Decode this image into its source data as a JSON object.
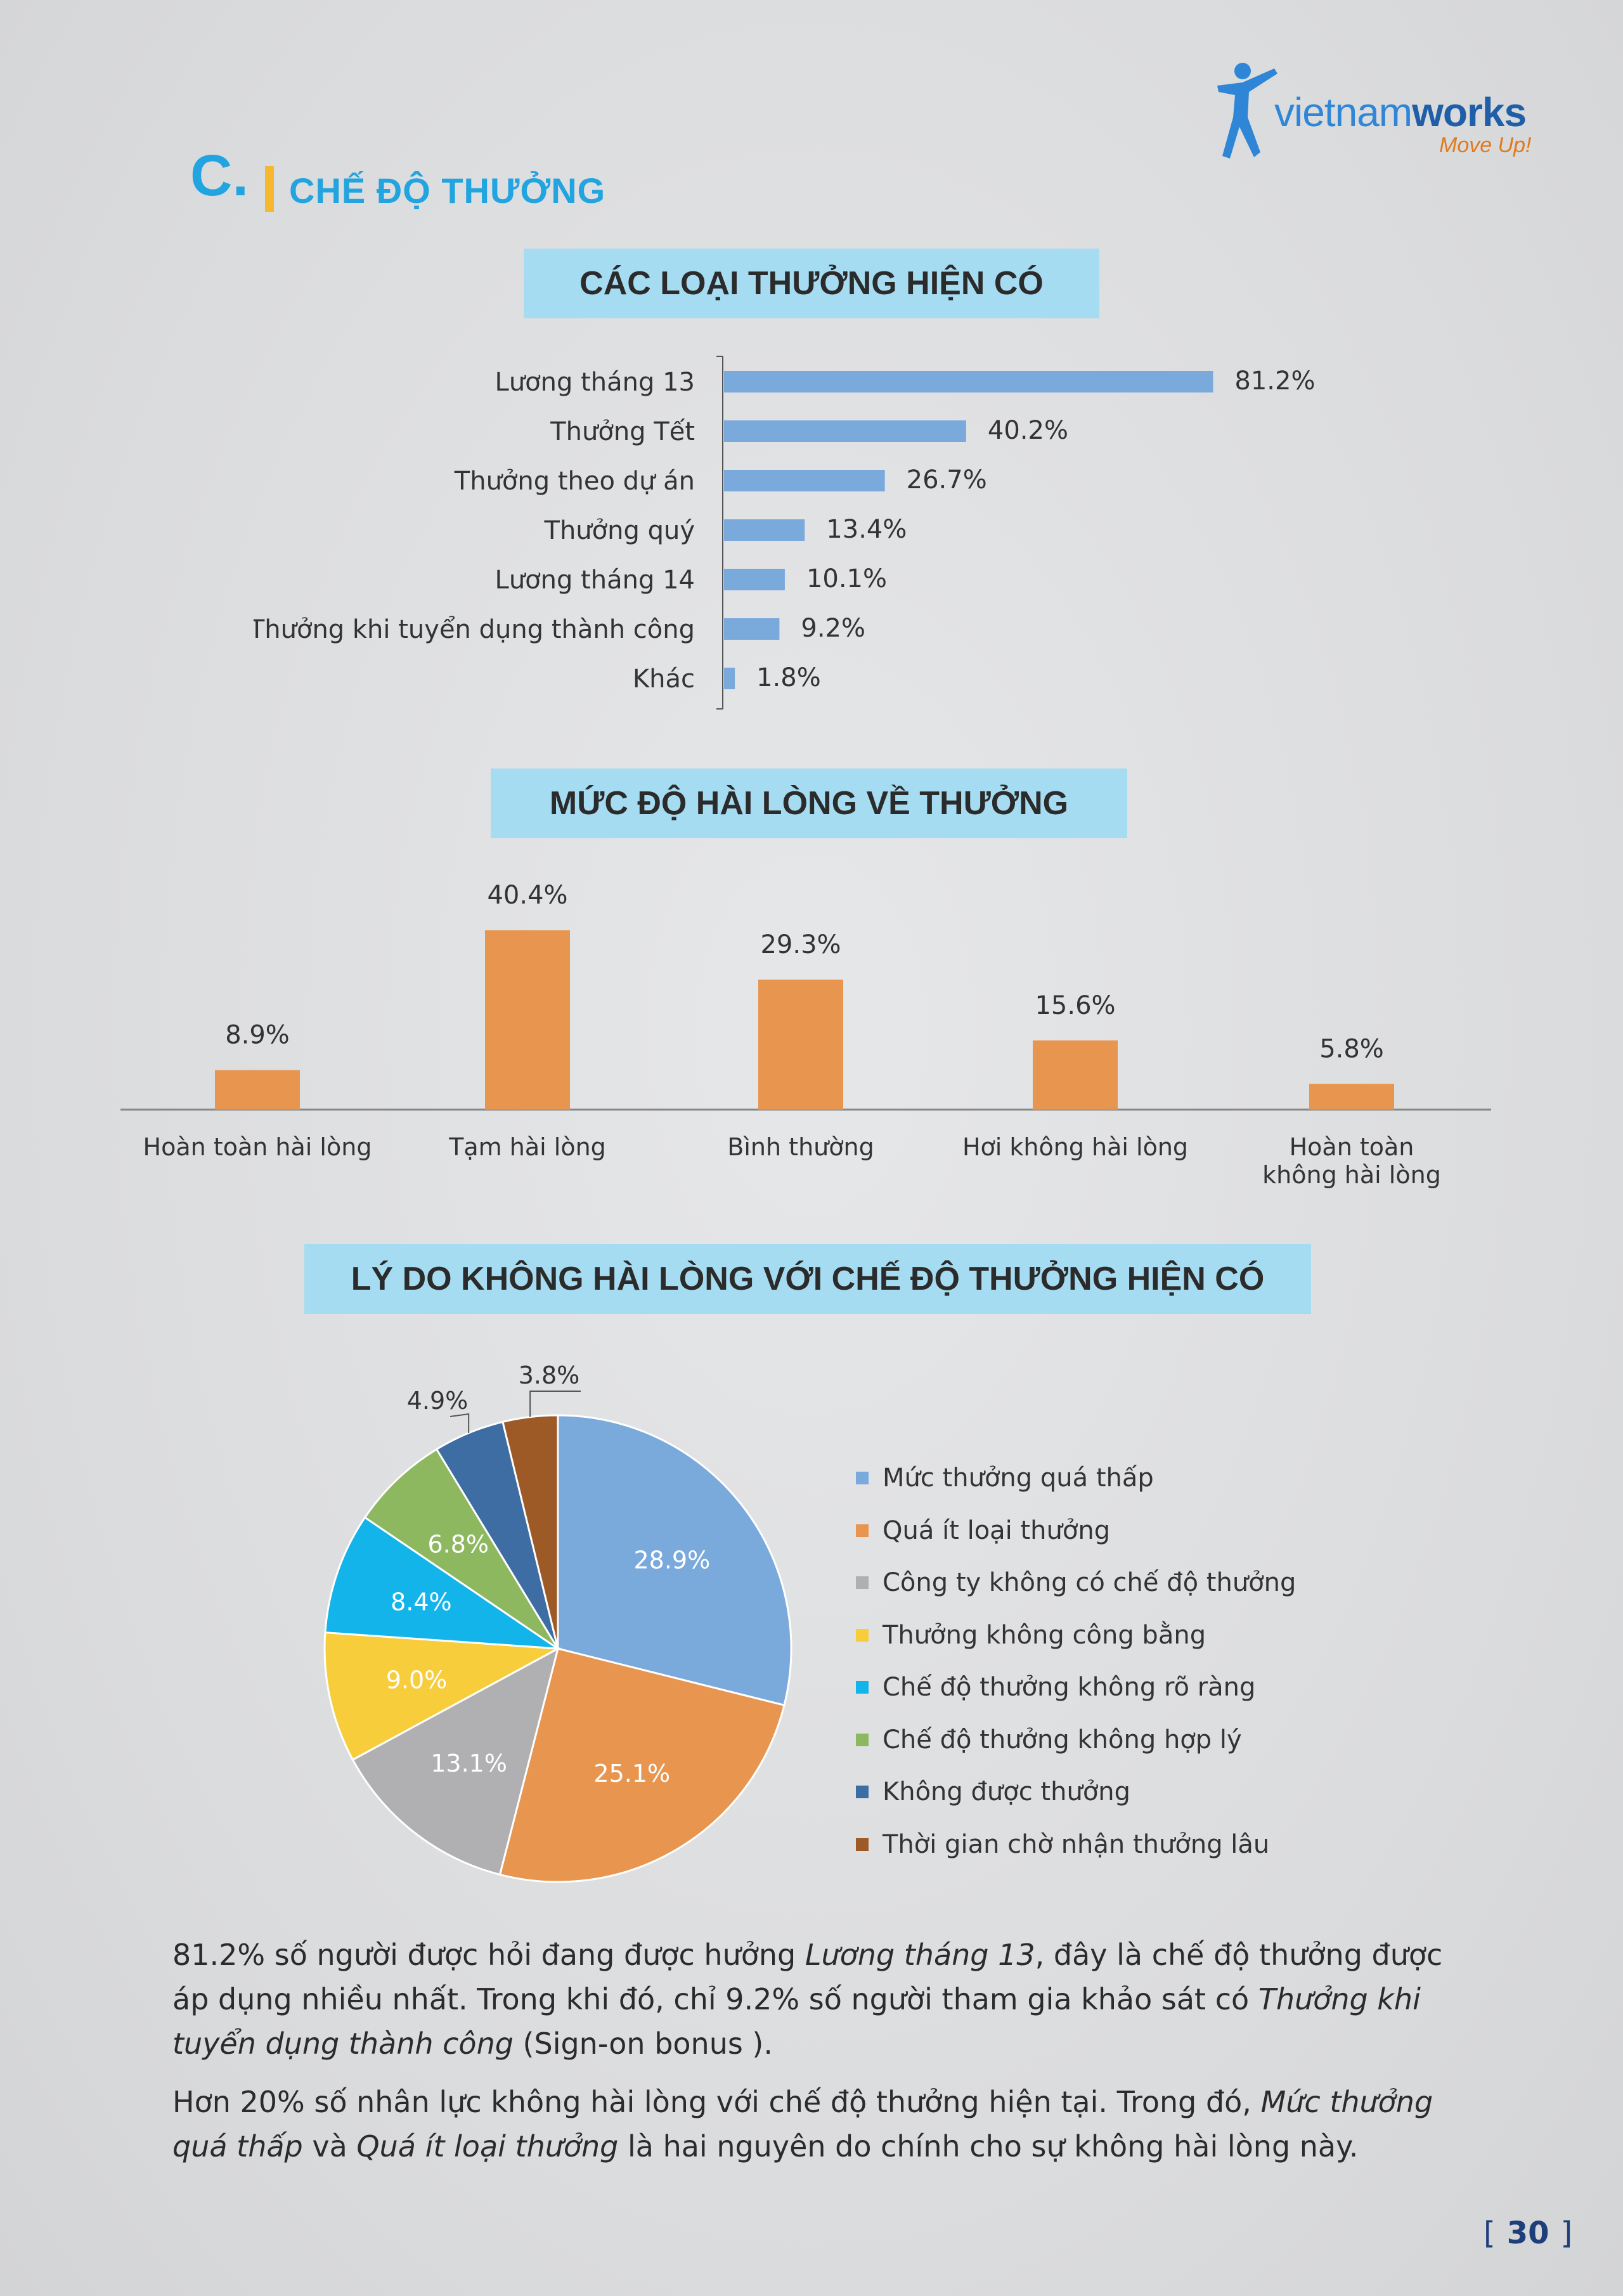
{
  "logo": {
    "brand_light": "vietnam",
    "brand_bold": "works",
    "tagline": "Move Up!"
  },
  "section": {
    "letter": "C.",
    "title": "CHẾ ĐỘ THƯỞNG"
  },
  "banners": {
    "types": "CÁC LOẠI THƯỞNG HIỆN CÓ",
    "satisfaction": "MỨC ĐỘ HÀI LÒNG VỀ THƯỞNG",
    "reasons": "LÝ DO KHÔNG HÀI LÒNG VỚI CHẾ ĐỘ THƯỞNG HIỆN CÓ"
  },
  "chart_data": [
    {
      "type": "bar",
      "orientation": "horizontal",
      "categories": [
        "Lương tháng 13",
        "Thưởng Tết",
        "Thưởng theo dự án",
        "Thưởng quý",
        "Lương tháng 14",
        "Thưởng khi tuyển dụng thành công",
        "Khác"
      ],
      "values": [
        81.2,
        40.2,
        26.7,
        13.4,
        10.1,
        9.2,
        1.8
      ],
      "value_labels": [
        "81.2%",
        "40.2%",
        "26.7%",
        "13.4%",
        "10.1%",
        "9.2%",
        "1.8%"
      ],
      "color": "#7aaadc",
      "xlim": [
        0,
        100
      ]
    },
    {
      "type": "bar",
      "orientation": "vertical",
      "categories": [
        "Hoàn toàn hài lòng",
        "Tạm hài lòng",
        "Bình thường",
        "Hơi không hài lòng",
        "Hoàn toàn|không hài lòng"
      ],
      "values": [
        8.9,
        40.4,
        29.3,
        15.6,
        5.8
      ],
      "value_labels": [
        "8.9%",
        "40.4%",
        "29.3%",
        "15.6%",
        "5.8%"
      ],
      "color": "#e8954f",
      "ylim": [
        0,
        45
      ]
    },
    {
      "type": "pie",
      "categories": [
        "Mức thưởng quá thấp",
        "Quá ít loại thưởng",
        "Công ty không có chế độ thưởng",
        "Thưởng không công bằng",
        "Chế độ thưởng không rõ ràng",
        "Chế độ thưởng không hợp lý",
        "Không được thưởng",
        "Thời gian chờ nhận thưởng lâu"
      ],
      "values": [
        28.9,
        25.1,
        13.1,
        9.0,
        8.4,
        6.8,
        4.9,
        3.8
      ],
      "value_labels": [
        "28.9%",
        "25.1%",
        "13.1%",
        "9.0%",
        "8.4%",
        "6.8%",
        "4.9%",
        "3.8%"
      ],
      "colors": [
        "#7aaadc",
        "#e8954f",
        "#b0b0b3",
        "#f8cd3c",
        "#12b4ea",
        "#8db860",
        "#3d6da3",
        "#9e5a26"
      ],
      "legend_position": "right"
    }
  ],
  "paragraphs": {
    "p1": {
      "a": "81.2% số người được hỏi đang được hưởng ",
      "b": "Lương tháng 13",
      "c": ", đây là chế độ thưởng được áp dụng nhiều nhất. Trong khi đó, chỉ 9.2% số người tham gia khảo sát có ",
      "d": "Thưởng khi tuyển dụng thành công",
      "e": " (Sign-on bonus )."
    },
    "p2": {
      "a": "Hơn 20% số nhân lực không hài lòng với chế độ thưởng hiện tại. Trong đó, ",
      "b": "Mức thưởng quá thấp",
      "c": " và ",
      "d": "Quá ít loại thưởng",
      "e": " là hai nguyên do chính cho sự không hài lòng này."
    }
  },
  "page": {
    "number": "30"
  }
}
